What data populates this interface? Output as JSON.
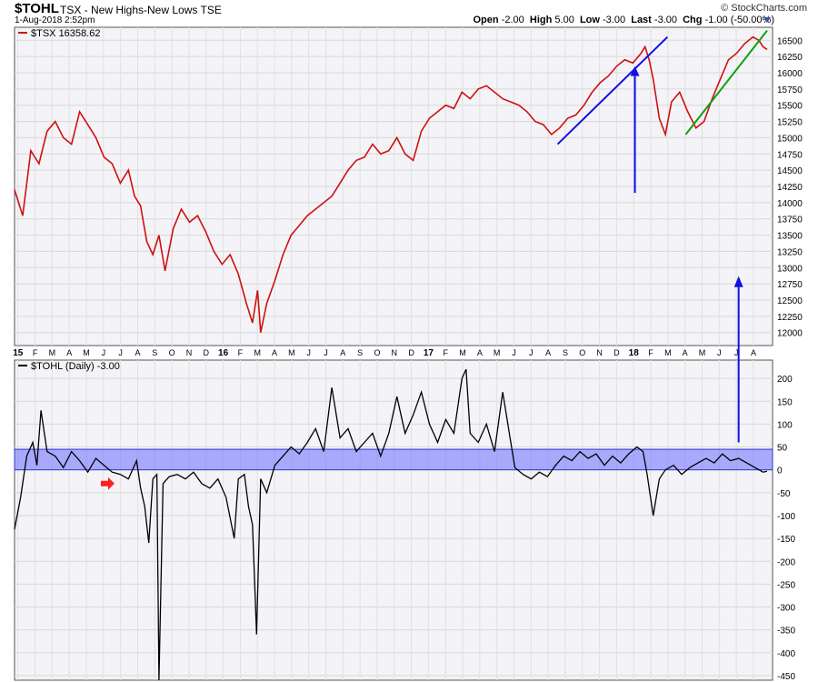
{
  "header": {
    "symbol": "$TOHL",
    "description": "TSX - New Highs-New Lows",
    "exchange": "TSE",
    "datetime": "1-Aug-2018 2:52pm",
    "brand": "© StockCharts.com",
    "open_label": "Open",
    "open_value": "-2.00",
    "high_label": "High",
    "high_value": "5.00",
    "low_label": "Low",
    "low_value": "-3.00",
    "last_label": "Last",
    "last_value": "-3.00",
    "chg_label": "Chg",
    "chg_value": "-1.00 (-50.00%)"
  },
  "chart_data": [
    {
      "type": "line",
      "legend": "$TSX 16358.62",
      "series_color": "#d01010",
      "ylim": [
        11800,
        16700
      ],
      "y_ticks": [
        "16500",
        "16250",
        "16000",
        "15750",
        "15500",
        "15250",
        "15000",
        "14750",
        "14500",
        "14250",
        "14000",
        "13750",
        "13500",
        "13250",
        "13000",
        "12750",
        "12500",
        "12250",
        "12000"
      ],
      "x_ticks": [
        "15",
        "F",
        "M",
        "A",
        "M",
        "J",
        "J",
        "A",
        "S",
        "O",
        "N",
        "D",
        "16",
        "F",
        "M",
        "A",
        "M",
        "J",
        "J",
        "A",
        "S",
        "O",
        "N",
        "D",
        "17",
        "F",
        "M",
        "A",
        "M",
        "J",
        "J",
        "A",
        "S",
        "O",
        "N",
        "D",
        "18",
        "F",
        "M",
        "A",
        "M",
        "J",
        "J",
        "A"
      ],
      "points": [
        [
          0,
          14200
        ],
        [
          0.4,
          13800
        ],
        [
          0.8,
          14800
        ],
        [
          1.2,
          14600
        ],
        [
          1.6,
          15100
        ],
        [
          2.0,
          15250
        ],
        [
          2.4,
          15000
        ],
        [
          2.8,
          14900
        ],
        [
          3.2,
          15400
        ],
        [
          3.6,
          15200
        ],
        [
          4.0,
          15000
        ],
        [
          4.4,
          14700
        ],
        [
          4.8,
          14600
        ],
        [
          5.2,
          14300
        ],
        [
          5.6,
          14500
        ],
        [
          5.9,
          14100
        ],
        [
          6.2,
          13950
        ],
        [
          6.5,
          13400
        ],
        [
          6.8,
          13200
        ],
        [
          7.1,
          13500
        ],
        [
          7.4,
          12950
        ],
        [
          7.8,
          13600
        ],
        [
          8.2,
          13900
        ],
        [
          8.6,
          13700
        ],
        [
          9.0,
          13800
        ],
        [
          9.4,
          13550
        ],
        [
          9.8,
          13250
        ],
        [
          10.2,
          13050
        ],
        [
          10.6,
          13200
        ],
        [
          11.0,
          12900
        ],
        [
          11.4,
          12450
        ],
        [
          11.7,
          12150
        ],
        [
          11.95,
          12650
        ],
        [
          12.1,
          12000
        ],
        [
          12.4,
          12450
        ],
        [
          12.8,
          12800
        ],
        [
          13.2,
          13200
        ],
        [
          13.6,
          13500
        ],
        [
          14.0,
          13650
        ],
        [
          14.4,
          13800
        ],
        [
          14.8,
          13900
        ],
        [
          15.2,
          14000
        ],
        [
          15.6,
          14100
        ],
        [
          16.0,
          14300
        ],
        [
          16.4,
          14500
        ],
        [
          16.8,
          14650
        ],
        [
          17.2,
          14700
        ],
        [
          17.6,
          14900
        ],
        [
          18.0,
          14750
        ],
        [
          18.4,
          14800
        ],
        [
          18.8,
          15000
        ],
        [
          19.2,
          14750
        ],
        [
          19.6,
          14650
        ],
        [
          20.0,
          15100
        ],
        [
          20.4,
          15300
        ],
        [
          20.8,
          15400
        ],
        [
          21.2,
          15500
        ],
        [
          21.6,
          15450
        ],
        [
          22.0,
          15700
        ],
        [
          22.4,
          15600
        ],
        [
          22.8,
          15750
        ],
        [
          23.2,
          15800
        ],
        [
          23.6,
          15700
        ],
        [
          24.0,
          15600
        ],
        [
          24.4,
          15550
        ],
        [
          24.8,
          15500
        ],
        [
          25.2,
          15400
        ],
        [
          25.6,
          15250
        ],
        [
          26.0,
          15200
        ],
        [
          26.4,
          15050
        ],
        [
          26.8,
          15150
        ],
        [
          27.2,
          15300
        ],
        [
          27.6,
          15350
        ],
        [
          28.0,
          15500
        ],
        [
          28.4,
          15700
        ],
        [
          28.8,
          15850
        ],
        [
          29.2,
          15950
        ],
        [
          29.6,
          16100
        ],
        [
          30.0,
          16200
        ],
        [
          30.4,
          16150
        ],
        [
          30.8,
          16300
        ],
        [
          31.0,
          16400
        ],
        [
          31.2,
          16200
        ],
        [
          31.4,
          15900
        ],
        [
          31.7,
          15300
        ],
        [
          32.0,
          15050
        ],
        [
          32.3,
          15550
        ],
        [
          32.7,
          15700
        ],
        [
          33.1,
          15400
        ],
        [
          33.5,
          15150
        ],
        [
          33.9,
          15250
        ],
        [
          34.3,
          15600
        ],
        [
          34.7,
          15900
        ],
        [
          35.1,
          16200
        ],
        [
          35.5,
          16300
        ],
        [
          35.9,
          16450
        ],
        [
          36.3,
          16550
        ],
        [
          36.6,
          16500
        ],
        [
          36.8,
          16400
        ],
        [
          37.0,
          16359
        ]
      ]
    },
    {
      "type": "line",
      "legend": "$TOHL (Daily) -3.00",
      "series_color": "#000000",
      "band": [
        0,
        45
      ],
      "band_color": "#7777ff",
      "ylim": [
        -460,
        240
      ],
      "y_ticks": [
        "200",
        "150",
        "100",
        "50",
        "0",
        "-50",
        "-100",
        "-150",
        "-200",
        "-250",
        "-300",
        "-350",
        "-400",
        "-450"
      ],
      "points": [
        [
          0,
          -130
        ],
        [
          0.3,
          -60
        ],
        [
          0.6,
          30
        ],
        [
          0.9,
          60
        ],
        [
          1.1,
          10
        ],
        [
          1.3,
          130
        ],
        [
          1.6,
          40
        ],
        [
          2.0,
          30
        ],
        [
          2.4,
          5
        ],
        [
          2.8,
          40
        ],
        [
          3.2,
          20
        ],
        [
          3.6,
          -5
        ],
        [
          4.0,
          25
        ],
        [
          4.4,
          10
        ],
        [
          4.8,
          -5
        ],
        [
          5.2,
          -10
        ],
        [
          5.6,
          -20
        ],
        [
          6.0,
          20
        ],
        [
          6.2,
          -40
        ],
        [
          6.4,
          -80
        ],
        [
          6.6,
          -160
        ],
        [
          6.8,
          -20
        ],
        [
          7.0,
          -10
        ],
        [
          7.1,
          -460
        ],
        [
          7.3,
          -30
        ],
        [
          7.6,
          -15
        ],
        [
          8.0,
          -10
        ],
        [
          8.4,
          -20
        ],
        [
          8.8,
          -5
        ],
        [
          9.2,
          -30
        ],
        [
          9.6,
          -40
        ],
        [
          10.0,
          -20
        ],
        [
          10.4,
          -60
        ],
        [
          10.8,
          -150
        ],
        [
          11.0,
          -20
        ],
        [
          11.3,
          -10
        ],
        [
          11.5,
          -80
        ],
        [
          11.7,
          -120
        ],
        [
          11.9,
          -360
        ],
        [
          12.1,
          -20
        ],
        [
          12.4,
          -50
        ],
        [
          12.8,
          10
        ],
        [
          13.2,
          30
        ],
        [
          13.6,
          50
        ],
        [
          14.0,
          35
        ],
        [
          14.4,
          60
        ],
        [
          14.8,
          90
        ],
        [
          15.2,
          40
        ],
        [
          15.6,
          180
        ],
        [
          16.0,
          70
        ],
        [
          16.4,
          90
        ],
        [
          16.8,
          40
        ],
        [
          17.2,
          60
        ],
        [
          17.6,
          80
        ],
        [
          18.0,
          30
        ],
        [
          18.4,
          80
        ],
        [
          18.8,
          160
        ],
        [
          19.2,
          80
        ],
        [
          19.6,
          120
        ],
        [
          20.0,
          170
        ],
        [
          20.4,
          100
        ],
        [
          20.8,
          60
        ],
        [
          21.2,
          110
        ],
        [
          21.6,
          80
        ],
        [
          22.0,
          200
        ],
        [
          22.2,
          220
        ],
        [
          22.4,
          80
        ],
        [
          22.8,
          60
        ],
        [
          23.2,
          100
        ],
        [
          23.6,
          40
        ],
        [
          24.0,
          170
        ],
        [
          24.4,
          60
        ],
        [
          24.6,
          5
        ],
        [
          25.0,
          -10
        ],
        [
          25.4,
          -20
        ],
        [
          25.8,
          -5
        ],
        [
          26.2,
          -15
        ],
        [
          26.6,
          10
        ],
        [
          27.0,
          30
        ],
        [
          27.4,
          20
        ],
        [
          27.8,
          40
        ],
        [
          28.2,
          25
        ],
        [
          28.6,
          35
        ],
        [
          29.0,
          10
        ],
        [
          29.4,
          30
        ],
        [
          29.8,
          15
        ],
        [
          30.2,
          35
        ],
        [
          30.6,
          50
        ],
        [
          30.9,
          40
        ],
        [
          31.1,
          -10
        ],
        [
          31.4,
          -100
        ],
        [
          31.7,
          -20
        ],
        [
          32.0,
          0
        ],
        [
          32.4,
          10
        ],
        [
          32.8,
          -10
        ],
        [
          33.2,
          5
        ],
        [
          33.6,
          15
        ],
        [
          34.0,
          25
        ],
        [
          34.4,
          15
        ],
        [
          34.8,
          35
        ],
        [
          35.2,
          20
        ],
        [
          35.6,
          25
        ],
        [
          36.0,
          15
        ],
        [
          36.4,
          5
        ],
        [
          36.8,
          -5
        ],
        [
          37.0,
          -3
        ]
      ]
    }
  ]
}
